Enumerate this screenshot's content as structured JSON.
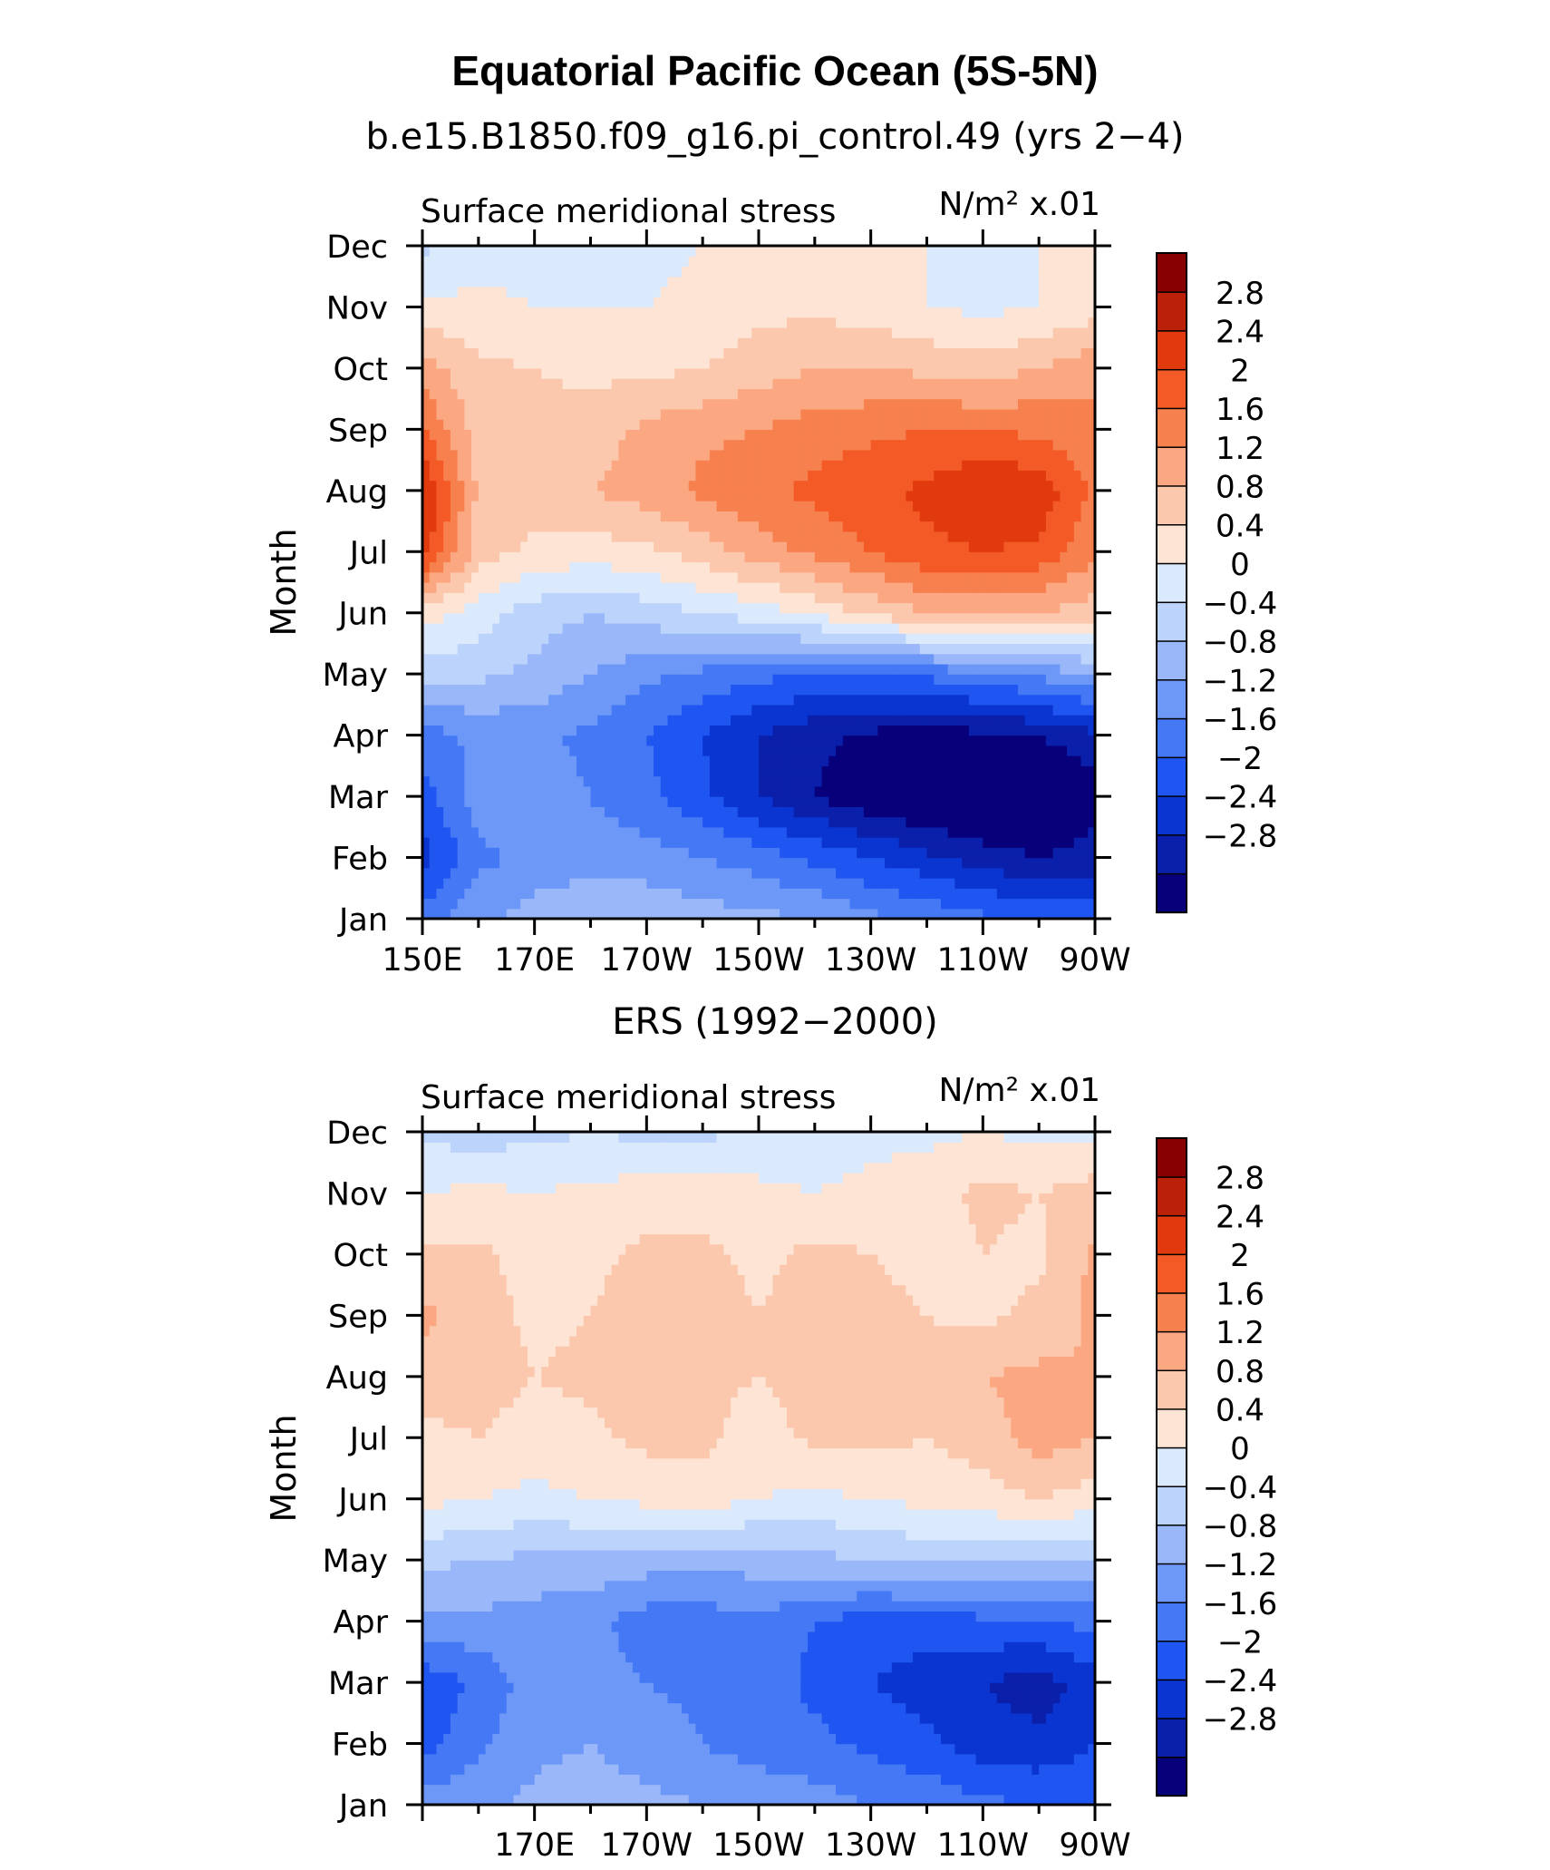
{
  "page": {
    "title": "Equatorial Pacific Ocean (5S-5N)"
  },
  "colorbar": {
    "levels": [
      -3.2,
      -2.8,
      -2.4,
      -2.0,
      -1.6,
      -1.2,
      -0.8,
      -0.4,
      0.0,
      0.4,
      0.8,
      1.2,
      1.6,
      2.0,
      2.4,
      2.8,
      3.2
    ],
    "colors": [
      "#08007a",
      "#0a1faa",
      "#0a35d0",
      "#1f55f0",
      "#4478f5",
      "#6d98f7",
      "#9ab8f9",
      "#bcd3fb",
      "#dbe9fd",
      "#fde4d4",
      "#fcc8ad",
      "#fba882",
      "#f7804f",
      "#f45a26",
      "#e23a0f",
      "#bb2108",
      "#880000"
    ],
    "labels": [
      "2.8",
      "2.4",
      "2",
      "1.6",
      "1.2",
      "0.8",
      "0.4",
      "0",
      "−0.4",
      "−0.8",
      "−1.2",
      "−1.6",
      "−2",
      "−2.4",
      "−2.8"
    ]
  },
  "chart_data": [
    {
      "type": "heatmap",
      "subtitle": "b.e15.B1850.f09_g16.pi_control.49 (yrs 2−4)",
      "variable_label": "Surface meridional stress",
      "units_label": "N/m² x.01",
      "ylabel": "Month",
      "x_values": [
        150,
        160,
        170,
        180,
        190,
        200,
        210,
        220,
        230,
        240,
        250,
        260,
        270
      ],
      "x_tick_values": [
        150,
        170,
        190,
        210,
        230,
        250,
        270
      ],
      "x_tick_labels": [
        "150E",
        "170E",
        "170W",
        "150W",
        "130W",
        "110W",
        "90W"
      ],
      "y_tick_labels": [
        "Jan",
        "Feb",
        "Mar",
        "Apr",
        "May",
        "Jun",
        "Jul",
        "Aug",
        "Sep",
        "Oct",
        "Nov",
        "Dec"
      ],
      "values": [
        [
          -1.4,
          -0.9,
          -0.6,
          -0.4,
          -0.5,
          -0.6,
          -0.7,
          -0.8,
          -1.1,
          -1.3,
          -1.5,
          -1.7,
          -1.8
        ],
        [
          -2.2,
          -1.3,
          -1.1,
          -1.0,
          -1.0,
          -1.2,
          -1.4,
          -1.7,
          -2.0,
          -2.3,
          -2.6,
          -2.8,
          -2.6
        ],
        [
          -1.8,
          -1.0,
          -1.0,
          -1.2,
          -1.5,
          -1.9,
          -2.4,
          -2.8,
          -3.1,
          -3.3,
          -3.4,
          -3.4,
          -3.0
        ],
        [
          -1.4,
          -1.1,
          -1.1,
          -1.3,
          -1.6,
          -2.0,
          -2.4,
          -2.7,
          -2.9,
          -3.0,
          -2.9,
          -2.8,
          -2.5
        ],
        [
          -0.2,
          -0.3,
          -0.5,
          -0.8,
          -1.1,
          -1.3,
          -1.5,
          -1.6,
          -1.6,
          -1.5,
          -1.3,
          -1.1,
          -0.8
        ],
        [
          0.6,
          0.2,
          -0.2,
          -0.4,
          -0.2,
          0.0,
          0.2,
          0.5,
          0.9,
          1.2,
          1.3,
          1.2,
          1.0
        ],
        [
          2.6,
          1.0,
          0.7,
          0.6,
          0.7,
          1.0,
          1.4,
          1.7,
          2.0,
          2.3,
          2.4,
          2.3,
          1.7
        ],
        [
          2.9,
          1.1,
          1.0,
          1.2,
          1.4,
          1.7,
          1.9,
          2.1,
          2.3,
          2.5,
          2.8,
          2.7,
          1.9
        ],
        [
          2.0,
          1.0,
          0.9,
          1.0,
          1.3,
          1.5,
          1.6,
          1.8,
          1.9,
          2.0,
          2.0,
          1.9,
          1.7
        ],
        [
          1.4,
          0.9,
          0.8,
          0.7,
          0.7,
          0.8,
          1.0,
          1.2,
          1.2,
          1.1,
          1.0,
          1.2,
          1.5
        ],
        [
          0.5,
          0.5,
          0.4,
          0.4,
          0.4,
          0.5,
          0.7,
          0.7,
          0.6,
          0.4,
          0.3,
          0.4,
          0.6
        ],
        [
          -0.1,
          0.2,
          0.3,
          0.3,
          0.3,
          0.4,
          0.5,
          0.5,
          0.5,
          0.4,
          0.3,
          0.4,
          0.5
        ]
      ]
    },
    {
      "type": "heatmap",
      "subtitle": "ERS (1992−2000)",
      "variable_label": "Surface meridional stress",
      "units_label": "N/m² x.01",
      "ylabel": "Month",
      "x_values": [
        150,
        160,
        170,
        180,
        190,
        200,
        210,
        220,
        230,
        240,
        250,
        260,
        270
      ],
      "x_tick_values": [
        170,
        190,
        210,
        230,
        250,
        270
      ],
      "x_tick_labels": [
        "170E",
        "170W",
        "150W",
        "130W",
        "110W",
        "90W"
      ],
      "y_tick_labels": [
        "Jan",
        "Feb",
        "Mar",
        "Apr",
        "May",
        "Jun",
        "Jul",
        "Aug",
        "Sep",
        "Oct",
        "Nov",
        "Dec"
      ],
      "values": [
        [
          -1.0,
          -0.9,
          -0.7,
          -0.6,
          -0.7,
          -0.8,
          -0.9,
          -1.0,
          -1.2,
          -1.3,
          -1.5,
          -1.6,
          -1.7
        ],
        [
          -1.8,
          -1.3,
          -0.9,
          -0.8,
          -1.0,
          -1.2,
          -1.4,
          -1.5,
          -1.7,
          -1.9,
          -2.2,
          -2.3,
          -2.0
        ],
        [
          -1.9,
          -1.5,
          -1.0,
          -1.0,
          -1.2,
          -1.3,
          -1.4,
          -1.7,
          -2.0,
          -2.2,
          -2.4,
          -2.6,
          -2.2
        ],
        [
          -0.9,
          -0.9,
          -1.0,
          -1.1,
          -1.4,
          -1.4,
          -1.3,
          -1.6,
          -1.8,
          -1.8,
          -1.7,
          -1.6,
          -1.5
        ],
        [
          -0.3,
          -0.4,
          -0.5,
          -0.5,
          -0.6,
          -0.7,
          -0.6,
          -0.5,
          -0.4,
          -0.3,
          -0.3,
          -0.4,
          -0.4
        ],
        [
          0.5,
          0.4,
          0.3,
          0.4,
          0.5,
          0.6,
          0.4,
          0.3,
          0.4,
          0.5,
          0.6,
          0.8,
          0.6
        ],
        [
          0.7,
          0.8,
          0.6,
          0.7,
          0.9,
          0.9,
          0.6,
          0.9,
          0.9,
          0.8,
          1.0,
          1.4,
          1.2
        ],
        [
          1.0,
          1.0,
          0.8,
          0.9,
          1.0,
          0.9,
          0.8,
          1.0,
          1.0,
          0.9,
          1.2,
          1.3,
          1.2
        ],
        [
          1.3,
          1.0,
          0.7,
          0.8,
          1.0,
          1.0,
          0.8,
          1.0,
          1.0,
          0.8,
          0.7,
          0.9,
          1.3
        ],
        [
          0.9,
          0.9,
          0.6,
          0.7,
          0.9,
          0.9,
          0.7,
          0.9,
          0.8,
          0.6,
          0.8,
          0.7,
          1.3
        ],
        [
          0.4,
          0.5,
          0.4,
          0.5,
          0.6,
          0.6,
          0.5,
          0.4,
          0.5,
          0.6,
          0.9,
          0.8,
          1.0
        ],
        [
          -0.1,
          -0.2,
          -0.1,
          0.0,
          -0.1,
          -0.1,
          0.1,
          0.2,
          0.3,
          0.3,
          0.4,
          0.3,
          0.3
        ]
      ]
    }
  ]
}
